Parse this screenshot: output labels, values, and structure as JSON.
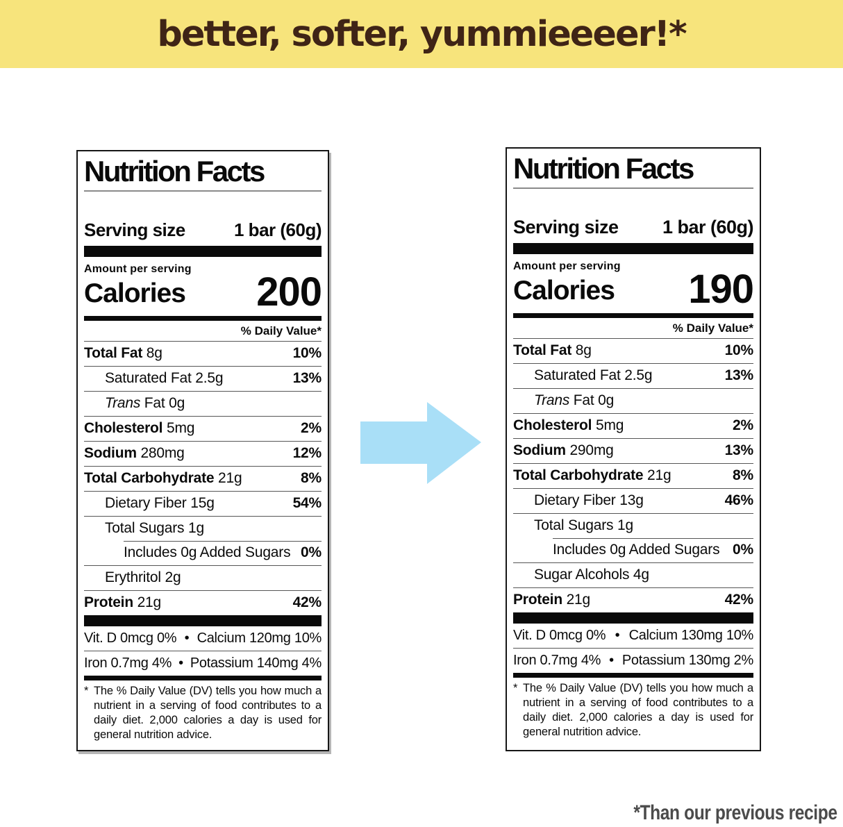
{
  "banner": {
    "title": "better, softer, yummieeeer!*",
    "bg_color": "#F7E47C",
    "text_color": "#3F2416"
  },
  "arrow": {
    "direction": "right",
    "color": "#A9DFF7"
  },
  "footer_note": "*Than our previous recipe",
  "footer_note_color": "#4B4B4B",
  "labels": [
    {
      "id": "before",
      "title": "Nutrition Facts",
      "serving_size_label": "Serving size",
      "serving_size_value": "1 bar (60g)",
      "amount_per_serving_label": "Amount per serving",
      "calories_label": "Calories",
      "calories_value": "200",
      "daily_value_header": "% Daily Value*",
      "rows": [
        {
          "segments": [
            {
              "text": "Total Fat ",
              "style": "bold"
            },
            {
              "text": "8g",
              "style": "plain"
            }
          ],
          "dv": "10%",
          "indent": 0
        },
        {
          "segments": [
            {
              "text": "Saturated Fat 2.5g",
              "style": "plain"
            }
          ],
          "dv": "13%",
          "indent": 1
        },
        {
          "segments": [
            {
              "text": "Trans",
              "style": "italic"
            },
            {
              "text": " Fat 0g",
              "style": "plain"
            }
          ],
          "dv": "",
          "indent": 1
        },
        {
          "segments": [
            {
              "text": "Cholesterol ",
              "style": "bold"
            },
            {
              "text": "5mg",
              "style": "plain"
            }
          ],
          "dv": "2%",
          "indent": 0
        },
        {
          "segments": [
            {
              "text": "Sodium ",
              "style": "bold"
            },
            {
              "text": "280mg",
              "style": "plain"
            }
          ],
          "dv": "12%",
          "indent": 0
        },
        {
          "segments": [
            {
              "text": "Total Carbohydrate ",
              "style": "bold"
            },
            {
              "text": "21g",
              "style": "plain"
            }
          ],
          "dv": "8%",
          "indent": 0
        },
        {
          "segments": [
            {
              "text": "Dietary Fiber 15g",
              "style": "plain"
            }
          ],
          "dv": "54%",
          "indent": 1
        },
        {
          "segments": [
            {
              "text": "Total Sugars 1g",
              "style": "plain"
            }
          ],
          "dv": "",
          "indent": 1
        },
        {
          "segments": [
            {
              "text": "Includes 0g Added Sugars",
              "style": "plain"
            }
          ],
          "dv": "0%",
          "indent": 2,
          "rule_inset": true
        },
        {
          "segments": [
            {
              "text": "Erythritol 2g",
              "style": "plain"
            }
          ],
          "dv": "",
          "indent": 1
        },
        {
          "segments": [
            {
              "text": "Protein ",
              "style": "bold"
            },
            {
              "text": "21g",
              "style": "plain"
            }
          ],
          "dv": "42%",
          "indent": 0
        }
      ],
      "micros": [
        {
          "left": "Vit. D 0mcg 0%",
          "bullet": "•",
          "right": "Calcium 120mg 10%"
        },
        {
          "left": "Iron 0.7mg 4%",
          "bullet": "•",
          "right": "Potassium 140mg 4%"
        }
      ],
      "footnote_asterisk": "*",
      "footnote": "The % Daily Value (DV) tells you how much a nutrient in a serving of food contributes to a daily diet. 2,000 calories a day is used for general nutrition advice."
    },
    {
      "id": "after",
      "title": "Nutrition Facts",
      "serving_size_label": "Serving size",
      "serving_size_value": "1 bar (60g)",
      "amount_per_serving_label": "Amount per serving",
      "calories_label": "Calories",
      "calories_value": "190",
      "daily_value_header": "% Daily Value*",
      "rows": [
        {
          "segments": [
            {
              "text": "Total Fat ",
              "style": "bold"
            },
            {
              "text": "8g",
              "style": "plain"
            }
          ],
          "dv": "10%",
          "indent": 0
        },
        {
          "segments": [
            {
              "text": "Saturated Fat 2.5g",
              "style": "plain"
            }
          ],
          "dv": "13%",
          "indent": 1
        },
        {
          "segments": [
            {
              "text": "Trans",
              "style": "italic"
            },
            {
              "text": " Fat 0g",
              "style": "plain"
            }
          ],
          "dv": "",
          "indent": 1
        },
        {
          "segments": [
            {
              "text": "Cholesterol ",
              "style": "bold"
            },
            {
              "text": "5mg",
              "style": "plain"
            }
          ],
          "dv": "2%",
          "indent": 0
        },
        {
          "segments": [
            {
              "text": "Sodium ",
              "style": "bold"
            },
            {
              "text": "290mg",
              "style": "plain"
            }
          ],
          "dv": "13%",
          "indent": 0
        },
        {
          "segments": [
            {
              "text": "Total Carbohydrate ",
              "style": "bold"
            },
            {
              "text": "21g",
              "style": "plain"
            }
          ],
          "dv": "8%",
          "indent": 0
        },
        {
          "segments": [
            {
              "text": "Dietary Fiber 13g",
              "style": "plain"
            }
          ],
          "dv": "46%",
          "indent": 1
        },
        {
          "segments": [
            {
              "text": "Total Sugars 1g",
              "style": "plain"
            }
          ],
          "dv": "",
          "indent": 1
        },
        {
          "segments": [
            {
              "text": "Includes 0g Added Sugars",
              "style": "plain"
            }
          ],
          "dv": "0%",
          "indent": 2,
          "rule_inset": true
        },
        {
          "segments": [
            {
              "text": "Sugar Alcohols 4g",
              "style": "plain"
            }
          ],
          "dv": "",
          "indent": 1
        },
        {
          "segments": [
            {
              "text": "Protein ",
              "style": "bold"
            },
            {
              "text": "21g",
              "style": "plain"
            }
          ],
          "dv": "42%",
          "indent": 0
        }
      ],
      "micros": [
        {
          "left": "Vit. D 0mcg 0%",
          "bullet": "•",
          "right": "Calcium 130mg 10%"
        },
        {
          "left": "Iron 0.7mg 4%",
          "bullet": "•",
          "right": "Potassium 130mg 2%"
        }
      ],
      "footnote_asterisk": "*",
      "footnote": "The % Daily Value (DV) tells you how much a nutrient in a serving of food contributes to a daily diet. 2,000 calories a day is used for general nutrition advice."
    }
  ]
}
